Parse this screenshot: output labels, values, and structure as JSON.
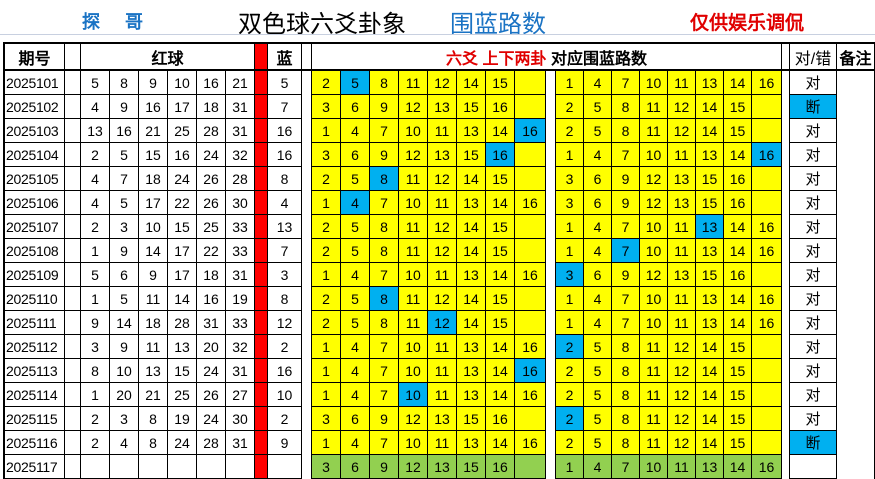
{
  "header": {
    "author": "探 哥",
    "title": "双色球六爻卦象",
    "subtitle": "围蓝路数",
    "disclaimer": "仅供娱乐调侃"
  },
  "columns": {
    "period": "期号",
    "red": "红球",
    "blue": "蓝",
    "group_title_red": "六爻 上下两卦",
    "group_title_black": "对应围蓝路数",
    "result": "对/错",
    "remark": "备注"
  },
  "colors": {
    "cell": "#ffff00",
    "hit": "#00b0f0",
    "next": "#92d050",
    "bar": "#ff0000"
  },
  "rows": [
    {
      "period": "2025101",
      "red": [
        "5",
        "8",
        "9",
        "10",
        "16",
        "21"
      ],
      "blue": "5",
      "g1": [
        "2",
        "5",
        "8",
        "11",
        "12",
        "14",
        "15",
        ""
      ],
      "g1_hit": "5",
      "g2": [
        "1",
        "4",
        "7",
        "10",
        "11",
        "13",
        "14",
        "16"
      ],
      "g2_hit": "",
      "result": "对"
    },
    {
      "period": "2025102",
      "red": [
        "4",
        "9",
        "16",
        "17",
        "18",
        "31"
      ],
      "blue": "7",
      "g1": [
        "3",
        "6",
        "9",
        "12",
        "13",
        "15",
        "16",
        ""
      ],
      "g1_hit": "",
      "g2": [
        "2",
        "5",
        "8",
        "11",
        "12",
        "14",
        "15",
        ""
      ],
      "g2_hit": "",
      "result": "断"
    },
    {
      "period": "2025103",
      "red": [
        "13",
        "16",
        "21",
        "25",
        "28",
        "31"
      ],
      "blue": "16",
      "g1": [
        "1",
        "4",
        "7",
        "10",
        "11",
        "13",
        "14",
        "16"
      ],
      "g1_hit": "16",
      "g2": [
        "2",
        "5",
        "8",
        "11",
        "12",
        "14",
        "15",
        ""
      ],
      "g2_hit": "",
      "result": "对"
    },
    {
      "period": "2025104",
      "red": [
        "2",
        "5",
        "15",
        "16",
        "24",
        "32"
      ],
      "blue": "16",
      "g1": [
        "3",
        "6",
        "9",
        "12",
        "13",
        "15",
        "16",
        ""
      ],
      "g1_hit": "16",
      "g2": [
        "1",
        "4",
        "7",
        "10",
        "11",
        "13",
        "14",
        "16"
      ],
      "g2_hit": "16",
      "result": "对"
    },
    {
      "period": "2025105",
      "red": [
        "4",
        "7",
        "18",
        "24",
        "26",
        "28"
      ],
      "blue": "8",
      "g1": [
        "2",
        "5",
        "8",
        "11",
        "12",
        "14",
        "15",
        ""
      ],
      "g1_hit": "8",
      "g2": [
        "3",
        "6",
        "9",
        "12",
        "13",
        "15",
        "16",
        ""
      ],
      "g2_hit": "",
      "result": "对"
    },
    {
      "period": "2025106",
      "red": [
        "4",
        "5",
        "17",
        "22",
        "26",
        "30"
      ],
      "blue": "4",
      "g1": [
        "1",
        "4",
        "7",
        "10",
        "11",
        "13",
        "14",
        "16"
      ],
      "g1_hit": "4",
      "g2": [
        "3",
        "6",
        "9",
        "12",
        "13",
        "15",
        "16",
        ""
      ],
      "g2_hit": "",
      "result": "对"
    },
    {
      "period": "2025107",
      "red": [
        "2",
        "3",
        "10",
        "15",
        "25",
        "33"
      ],
      "blue": "13",
      "g1": [
        "2",
        "5",
        "8",
        "11",
        "12",
        "14",
        "15",
        ""
      ],
      "g1_hit": "",
      "g2": [
        "1",
        "4",
        "7",
        "10",
        "11",
        "13",
        "14",
        "16"
      ],
      "g2_hit": "13",
      "result": "对"
    },
    {
      "period": "2025108",
      "red": [
        "1",
        "9",
        "14",
        "17",
        "22",
        "33"
      ],
      "blue": "7",
      "g1": [
        "2",
        "5",
        "8",
        "11",
        "12",
        "14",
        "15",
        ""
      ],
      "g1_hit": "",
      "g2": [
        "1",
        "4",
        "7",
        "10",
        "11",
        "13",
        "14",
        "16"
      ],
      "g2_hit": "7",
      "result": "对"
    },
    {
      "period": "2025109",
      "red": [
        "5",
        "6",
        "9",
        "17",
        "18",
        "31"
      ],
      "blue": "3",
      "g1": [
        "1",
        "4",
        "7",
        "10",
        "11",
        "13",
        "14",
        "16"
      ],
      "g1_hit": "",
      "g2": [
        "3",
        "6",
        "9",
        "12",
        "13",
        "15",
        "16",
        ""
      ],
      "g2_hit": "3",
      "result": "对"
    },
    {
      "period": "2025110",
      "red": [
        "1",
        "5",
        "11",
        "14",
        "16",
        "19"
      ],
      "blue": "8",
      "g1": [
        "2",
        "5",
        "8",
        "11",
        "12",
        "14",
        "15",
        ""
      ],
      "g1_hit": "8",
      "g2": [
        "1",
        "4",
        "7",
        "10",
        "11",
        "13",
        "14",
        "16"
      ],
      "g2_hit": "",
      "result": "对"
    },
    {
      "period": "2025111",
      "red": [
        "9",
        "14",
        "18",
        "28",
        "31",
        "33"
      ],
      "blue": "12",
      "g1": [
        "2",
        "5",
        "8",
        "11",
        "12",
        "14",
        "15",
        ""
      ],
      "g1_hit": "12",
      "g2": [
        "1",
        "4",
        "7",
        "10",
        "11",
        "13",
        "14",
        "16"
      ],
      "g2_hit": "",
      "result": "对"
    },
    {
      "period": "2025112",
      "red": [
        "3",
        "9",
        "11",
        "13",
        "20",
        "32"
      ],
      "blue": "2",
      "g1": [
        "1",
        "4",
        "7",
        "10",
        "11",
        "13",
        "14",
        "16"
      ],
      "g1_hit": "",
      "g2": [
        "2",
        "5",
        "8",
        "11",
        "12",
        "14",
        "15",
        ""
      ],
      "g2_hit": "2",
      "result": "对"
    },
    {
      "period": "2025113",
      "red": [
        "8",
        "10",
        "13",
        "15",
        "24",
        "31"
      ],
      "blue": "16",
      "g1": [
        "1",
        "4",
        "7",
        "10",
        "11",
        "13",
        "14",
        "16"
      ],
      "g1_hit": "16",
      "g2": [
        "2",
        "5",
        "8",
        "11",
        "12",
        "14",
        "15",
        ""
      ],
      "g2_hit": "",
      "result": "对"
    },
    {
      "period": "2025114",
      "red": [
        "1",
        "20",
        "21",
        "25",
        "26",
        "27"
      ],
      "blue": "10",
      "g1": [
        "1",
        "4",
        "7",
        "10",
        "11",
        "13",
        "14",
        "16"
      ],
      "g1_hit": "10",
      "g2": [
        "2",
        "5",
        "8",
        "11",
        "12",
        "14",
        "15",
        ""
      ],
      "g2_hit": "",
      "result": "对"
    },
    {
      "period": "2025115",
      "red": [
        "2",
        "3",
        "8",
        "19",
        "24",
        "30"
      ],
      "blue": "2",
      "g1": [
        "3",
        "6",
        "9",
        "12",
        "13",
        "15",
        "16",
        ""
      ],
      "g1_hit": "",
      "g2": [
        "2",
        "5",
        "8",
        "11",
        "12",
        "14",
        "15",
        ""
      ],
      "g2_hit": "2",
      "result": "对"
    },
    {
      "period": "2025116",
      "red": [
        "2",
        "4",
        "8",
        "24",
        "28",
        "31"
      ],
      "blue": "9",
      "g1": [
        "1",
        "4",
        "7",
        "10",
        "11",
        "13",
        "14",
        "16"
      ],
      "g1_hit": "",
      "g2": [
        "2",
        "5",
        "8",
        "11",
        "12",
        "14",
        "15",
        ""
      ],
      "g2_hit": "",
      "result": "断"
    },
    {
      "period": "2025117",
      "red": [
        "",
        "",
        "",
        "",
        "",
        ""
      ],
      "blue": "",
      "g1": [
        "3",
        "6",
        "9",
        "12",
        "13",
        "15",
        "16",
        ""
      ],
      "g1_hit": "",
      "g2": [
        "1",
        "4",
        "7",
        "10",
        "11",
        "13",
        "14",
        "16"
      ],
      "g2_hit": "",
      "result": "",
      "next": true
    }
  ]
}
